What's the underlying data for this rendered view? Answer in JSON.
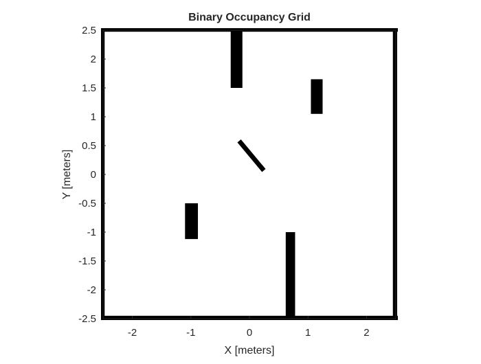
{
  "chart_data": {
    "type": "heatmap",
    "title": "Binary Occupancy Grid",
    "xlabel": "X [meters]",
    "ylabel": "Y [meters]",
    "xlim": [
      -2.5,
      2.5
    ],
    "ylim": [
      -2.5,
      2.5
    ],
    "xticks": [
      -2,
      -1,
      0,
      1,
      2
    ],
    "xtick_labels": [
      "-2",
      "-1",
      "0",
      "1",
      "2"
    ],
    "yticks": [
      2.5,
      2,
      1.5,
      1,
      0.5,
      0,
      -0.5,
      -1,
      -1.5,
      -2,
      -2.5
    ],
    "ytick_labels": [
      "2.5",
      "2",
      "1.5",
      "1",
      "0.5",
      "0",
      "-0.5",
      "-1",
      "-1.5",
      "-2",
      "-2.5"
    ],
    "occupied_color": "#000000",
    "free_color": "#ffffff",
    "boundary_walls": [
      {
        "name": "top-wall",
        "x0": -2.5,
        "x1": 2.5,
        "y0": 2.45,
        "y1": 2.5
      },
      {
        "name": "bottom-wall",
        "x0": -2.5,
        "x1": 2.5,
        "y0": -2.5,
        "y1": -2.45
      },
      {
        "name": "left-wall",
        "x0": -2.5,
        "x1": -2.45,
        "y0": -2.5,
        "y1": 2.5
      },
      {
        "name": "right-wall",
        "x0": 2.45,
        "x1": 2.5,
        "y0": -2.5,
        "y1": 2.5
      }
    ],
    "obstacles": [
      {
        "name": "top-pillar",
        "x0": -0.32,
        "x1": -0.12,
        "y0": 1.5,
        "y1": 2.5
      },
      {
        "name": "upper-right-block",
        "x0": 1.05,
        "x1": 1.25,
        "y0": 1.05,
        "y1": 1.65
      },
      {
        "name": "left-block",
        "x0": -1.1,
        "x1": -0.88,
        "y0": -1.12,
        "y1": -0.5
      },
      {
        "name": "bottom-pillar",
        "x0": 0.62,
        "x1": 0.78,
        "y0": -2.5,
        "y1": -1.0
      }
    ],
    "diagonal_obstacle": {
      "name": "diagonal-bar",
      "start": [
        -0.15,
        0.55
      ],
      "end": [
        0.22,
        0.1
      ],
      "thickness": 0.08
    }
  }
}
